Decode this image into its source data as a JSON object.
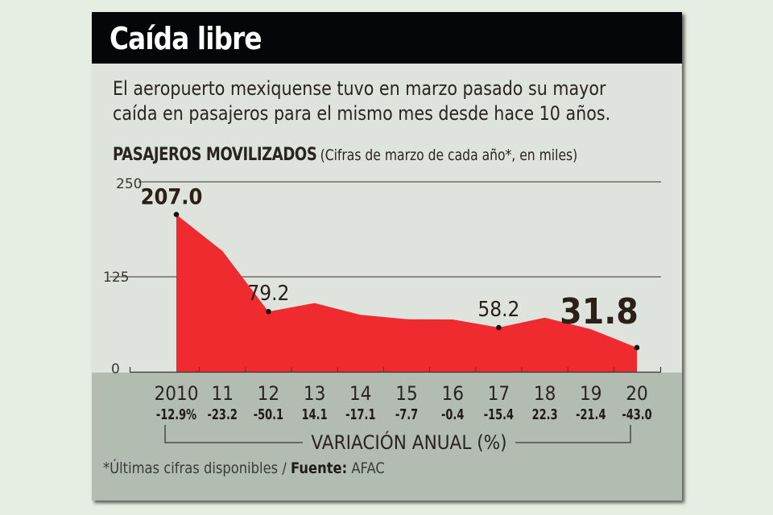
{
  "header": {
    "title": "Caída libre"
  },
  "description": {
    "line1": "El aeropuerto mexiquense  tuvo en marzo pasado su mayor",
    "line2": "caída en pasajeros para el mismo mes desde hace 10 años."
  },
  "subtitle": {
    "bold": "PASAJEROS MOVILIZADOS",
    "light": "(Cifras de marzo de cada año*, en miles)"
  },
  "footnote": {
    "text": "*Últimas cifras disponibles / ",
    "source_label": "Fuente:",
    "source": "AFAC"
  },
  "colors": {
    "area_fill": "#ef2b2f",
    "text_dark": "#2a2018",
    "background": "#dfe3dd",
    "band": "#b2bcb0",
    "header": "#05060a"
  },
  "chart_data": {
    "type": "area",
    "title": "PASAJEROS MOVILIZADOS",
    "subtitle": "(Cifras de marzo de cada año*, en miles)",
    "xlabel": "",
    "ylabel": "",
    "ylim": [
      0,
      250
    ],
    "yticks": [
      0,
      125,
      250
    ],
    "grid": true,
    "x": [
      "2010",
      "11",
      "12",
      "13",
      "14",
      "15",
      "16",
      "17",
      "18",
      "19",
      "20"
    ],
    "values": [
      207.0,
      159.0,
      79.2,
      90.4,
      74.9,
      69.2,
      68.9,
      58.2,
      71.3,
      56.0,
      31.8
    ],
    "data_labels": [
      {
        "index": 0,
        "text": "207.0",
        "emphasis": "medium"
      },
      {
        "index": 2,
        "text": "79.2",
        "emphasis": "normal"
      },
      {
        "index": 7,
        "text": "58.2",
        "emphasis": "normal"
      },
      {
        "index": 10,
        "text": "31.8",
        "emphasis": "large"
      }
    ],
    "annual_variation": {
      "label": "VARIACIÓN ANUAL (%)",
      "values": [
        "-12.9%",
        "-23.2",
        "-50.1",
        "14.1",
        "-17.1",
        "-7.7",
        "-0.4",
        "-15.4",
        "22.3",
        "-21.4",
        "-43.0"
      ]
    }
  }
}
